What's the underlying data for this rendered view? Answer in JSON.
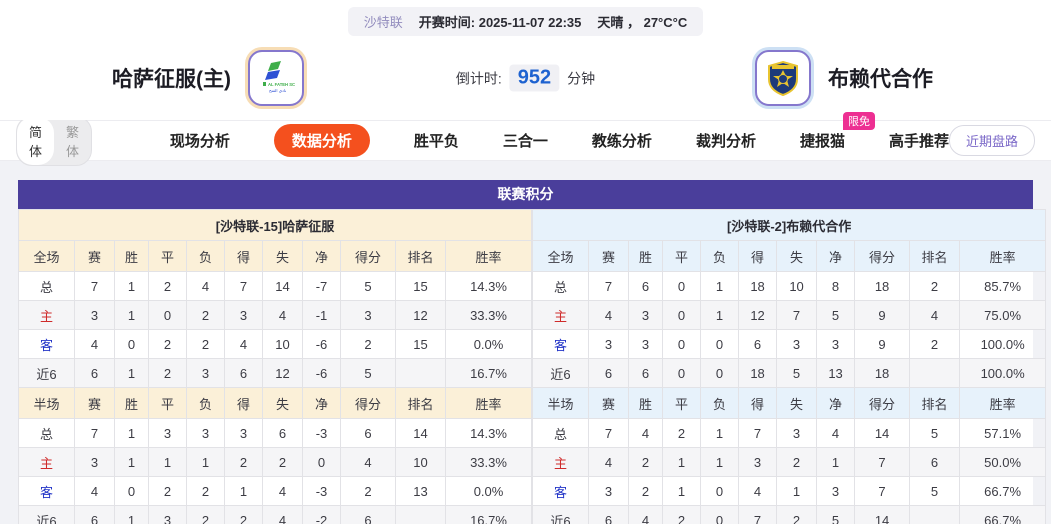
{
  "topbar": {
    "league": "沙特联",
    "kickoff": "开赛时间:  2025-11-07 22:35",
    "weather": "天晴 ， 27°C°C"
  },
  "match_header": {
    "home_team": "哈萨征服(主)",
    "away_team": "布赖代合作",
    "countdown_label": "倒计时:",
    "countdown_value": "952",
    "countdown_unit": "分钟"
  },
  "nav": {
    "lang_toggle": {
      "simplified": "简体",
      "traditional": "繁体",
      "active": "简体"
    },
    "tabs": [
      {
        "key": "scene-analysis",
        "label": "现场分析"
      },
      {
        "key": "data-analysis",
        "label": "数据分析",
        "active": true
      },
      {
        "key": "win-draw-loss",
        "label": "胜平负"
      },
      {
        "key": "three-in-one",
        "label": "三合一"
      },
      {
        "key": "coach-analysis",
        "label": "教练分析"
      },
      {
        "key": "referee-analysis",
        "label": "裁判分析"
      },
      {
        "key": "jiebao-cat",
        "label": "捷报猫",
        "badge": "限免"
      },
      {
        "key": "expert-recommend",
        "label": "高手推荐"
      }
    ],
    "recent_button": "近期盘路"
  },
  "league_table": {
    "title": "联赛积分",
    "columns_full": [
      "全场",
      "赛",
      "胜",
      "平",
      "负",
      "得",
      "失",
      "净",
      "得分",
      "排名",
      "胜率"
    ],
    "columns_half": [
      "半场",
      "赛",
      "胜",
      "平",
      "负",
      "得",
      "失",
      "净",
      "得分",
      "排名",
      "胜率"
    ],
    "home": {
      "sub_header": "[沙特联-15]哈萨征服",
      "full": [
        [
          "总",
          "7",
          "1",
          "2",
          "4",
          "7",
          "14",
          "-7",
          "5",
          "15",
          "14.3%"
        ],
        [
          "主",
          "3",
          "1",
          "0",
          "2",
          "3",
          "4",
          "-1",
          "3",
          "12",
          "33.3%"
        ],
        [
          "客",
          "4",
          "0",
          "2",
          "2",
          "4",
          "10",
          "-6",
          "2",
          "15",
          "0.0%"
        ],
        [
          "近6",
          "6",
          "1",
          "2",
          "3",
          "6",
          "12",
          "-6",
          "5",
          "",
          "16.7%"
        ]
      ],
      "half": [
        [
          "总",
          "7",
          "1",
          "3",
          "3",
          "3",
          "6",
          "-3",
          "6",
          "14",
          "14.3%"
        ],
        [
          "主",
          "3",
          "1",
          "1",
          "1",
          "2",
          "2",
          "0",
          "4",
          "10",
          "33.3%"
        ],
        [
          "客",
          "4",
          "0",
          "2",
          "2",
          "1",
          "4",
          "-3",
          "2",
          "13",
          "0.0%"
        ],
        [
          "近6",
          "6",
          "1",
          "3",
          "2",
          "2",
          "4",
          "-2",
          "6",
          "",
          "16.7%"
        ]
      ]
    },
    "away": {
      "sub_header": "[沙特联-2]布赖代合作",
      "full": [
        [
          "总",
          "7",
          "6",
          "0",
          "1",
          "18",
          "10",
          "8",
          "18",
          "2",
          "85.7%"
        ],
        [
          "主",
          "4",
          "3",
          "0",
          "1",
          "12",
          "7",
          "5",
          "9",
          "4",
          "75.0%"
        ],
        [
          "客",
          "3",
          "3",
          "0",
          "0",
          "6",
          "3",
          "3",
          "9",
          "2",
          "100.0%"
        ],
        [
          "近6",
          "6",
          "6",
          "0",
          "0",
          "18",
          "5",
          "13",
          "18",
          "",
          "100.0%"
        ]
      ],
      "half": [
        [
          "总",
          "7",
          "4",
          "2",
          "1",
          "7",
          "3",
          "4",
          "14",
          "5",
          "57.1%"
        ],
        [
          "主",
          "4",
          "2",
          "1",
          "1",
          "3",
          "2",
          "1",
          "7",
          "6",
          "50.0%"
        ],
        [
          "客",
          "3",
          "2",
          "1",
          "0",
          "4",
          "1",
          "3",
          "7",
          "5",
          "66.7%"
        ],
        [
          "近6",
          "6",
          "4",
          "2",
          "0",
          "7",
          "2",
          "5",
          "14",
          "",
          "66.7%"
        ]
      ]
    }
  },
  "colors": {
    "header_purple": "#4a3e9b",
    "active_tab_orange": "#f4501e",
    "badge_pink": "#ed2f92",
    "countdown_blue": "#1e62d0",
    "home_theme": "#fbf0d8",
    "away_theme": "#e7f2fb",
    "row_label_red": "#cf2b2b",
    "row_label_blue": "#2436c8"
  }
}
